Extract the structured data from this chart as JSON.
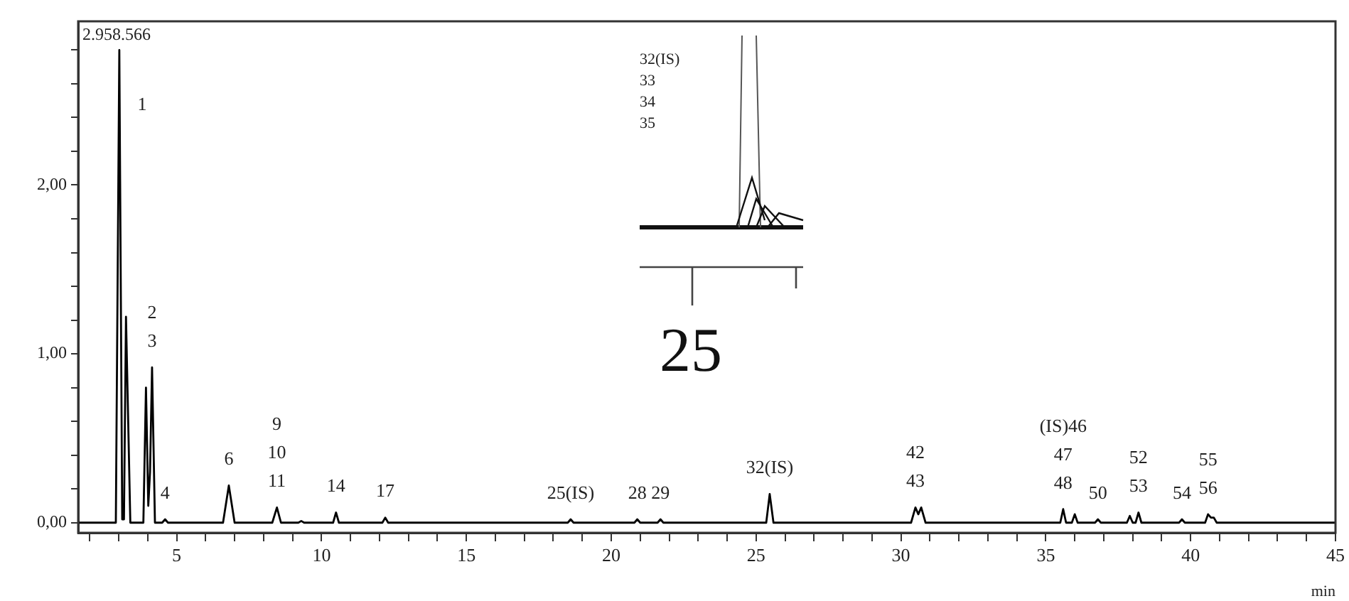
{
  "chart_data": {
    "type": "line",
    "xlabel": "min",
    "legend": false,
    "grid": false,
    "marker": "none",
    "xlim": [
      1.6,
      45
    ],
    "ylim": [
      -0.06,
      2.97
    ],
    "xticks": [
      {
        "value": 2,
        "label": null
      },
      {
        "value": 3,
        "label": null
      },
      {
        "value": 4,
        "label": null
      },
      5,
      {
        "value": 6,
        "label": null
      },
      {
        "value": 7,
        "label": null
      },
      {
        "value": 8,
        "label": null
      },
      {
        "value": 9,
        "label": null
      },
      10,
      {
        "value": 11,
        "label": null
      },
      {
        "value": 12,
        "label": null
      },
      {
        "value": 13,
        "label": null
      },
      {
        "value": 14,
        "label": null
      },
      15,
      {
        "value": 16,
        "label": null
      },
      {
        "value": 17,
        "label": null
      },
      {
        "value": 18,
        "label": null
      },
      {
        "value": 19,
        "label": null
      },
      20,
      {
        "value": 21,
        "label": null
      },
      {
        "value": 22,
        "label": null
      },
      {
        "value": 23,
        "label": null
      },
      {
        "value": 24,
        "label": null
      },
      25,
      {
        "value": 26,
        "label": null
      },
      {
        "value": 27,
        "label": null
      },
      {
        "value": 28,
        "label": null
      },
      {
        "value": 29,
        "label": null
      },
      30,
      {
        "value": 31,
        "label": null
      },
      {
        "value": 32,
        "label": null
      },
      {
        "value": 33,
        "label": null
      },
      {
        "value": 34,
        "label": null
      },
      35,
      {
        "value": 36,
        "label": null
      },
      {
        "value": 37,
        "label": null
      },
      {
        "value": 38,
        "label": null
      },
      {
        "value": 39,
        "label": null
      },
      40,
      {
        "value": 41,
        "label": null
      },
      {
        "value": 42,
        "label": null
      },
      {
        "value": 43,
        "label": null
      },
      {
        "value": 44,
        "label": null
      },
      45
    ],
    "yticks": [
      {
        "value": 0,
        "label": "0,00"
      },
      {
        "value": 0.2,
        "label": null
      },
      {
        "value": 0.4,
        "label": null
      },
      {
        "value": 0.6,
        "label": null
      },
      {
        "value": 0.8,
        "label": null
      },
      {
        "value": 1,
        "label": "1,00"
      },
      {
        "value": 1.2,
        "label": null
      },
      {
        "value": 1.4,
        "label": null
      },
      {
        "value": 1.6,
        "label": null
      },
      {
        "value": 1.8,
        "label": null
      },
      {
        "value": 2,
        "label": "2,00"
      },
      {
        "value": 2.2,
        "label": null
      },
      {
        "value": 2.4,
        "label": null
      },
      {
        "value": 2.6,
        "label": null
      },
      {
        "value": 2.8,
        "label": null
      }
    ],
    "series": [
      {
        "color": "#000000",
        "line_style": "solid",
        "x": [
          1.6,
          2.9,
          3.02,
          3.12,
          3.18,
          3.25,
          3.4,
          3.85,
          3.94,
          4.02,
          4.08,
          4.15,
          4.25,
          4.5,
          4.6,
          4.7,
          6.6,
          6.8,
          7.0,
          8.3,
          8.46,
          8.6,
          9.2,
          9.3,
          9.4,
          10.4,
          10.5,
          10.6,
          12.1,
          12.2,
          12.3,
          18.5,
          18.6,
          18.7,
          20.8,
          20.9,
          21.0,
          21.6,
          21.7,
          21.8,
          25.35,
          25.47,
          25.6,
          30.35,
          30.5,
          30.6,
          30.7,
          30.85,
          35.5,
          35.6,
          35.7,
          35.9,
          36.0,
          36.1,
          36.7,
          36.8,
          36.9,
          37.8,
          37.9,
          38.0,
          38.1,
          38.2,
          38.3,
          39.6,
          39.7,
          39.8,
          40.5,
          40.6,
          40.7,
          40.8,
          40.9,
          45
        ],
        "values": [
          0,
          0,
          2.8,
          0.02,
          0.02,
          1.22,
          0,
          0,
          0.8,
          0.1,
          0.3,
          0.92,
          0,
          0,
          0.02,
          0,
          0,
          0.22,
          0,
          0,
          0.09,
          0,
          0,
          0.01,
          0,
          0,
          0.06,
          0,
          0,
          0.03,
          0,
          0,
          0.02,
          0,
          0,
          0.02,
          0,
          0,
          0.02,
          0,
          0,
          0.17,
          0,
          0,
          0.09,
          0.05,
          0.09,
          0,
          0,
          0.08,
          0,
          0,
          0.05,
          0,
          0,
          0.02,
          0,
          0,
          0.04,
          0,
          0,
          0.06,
          0,
          0,
          0.02,
          0,
          0,
          0.05,
          0.03,
          0.03,
          0,
          0
        ]
      }
    ],
    "annotations": [
      "2.958.566",
      "32(IS)\n33\n34\n35",
      "25",
      {
        "text": "1",
        "x": 3.02,
        "y": 2.8
      },
      {
        "text": "2\n3",
        "x": 4.15,
        "y": 0.92
      },
      {
        "text": "4",
        "x": 4.6,
        "y": 0.02
      },
      {
        "text": "6",
        "x": 6.8,
        "y": 0.22
      },
      {
        "text": "9\n10\n11",
        "x": 8.46,
        "y": 0.09
      },
      {
        "text": "14",
        "x": 10.5,
        "y": 0.06
      },
      {
        "text": "17",
        "x": 12.2,
        "y": 0.03
      },
      {
        "text": "25(IS)",
        "x": 18.6,
        "y": 0.02
      },
      {
        "text": "28",
        "x": 20.9,
        "y": 0.02
      },
      {
        "text": "29",
        "x": 21.7,
        "y": 0.02
      },
      {
        "text": "32(IS)",
        "x": 25.47,
        "y": 0.17
      },
      {
        "text": "42\n43",
        "x": 30.5,
        "y": 0.09
      },
      {
        "text": "(IS)46\n47\n48",
        "x": 35.6,
        "y": 0.08
      },
      {
        "text": "50",
        "x": 36.8,
        "y": 0.02
      },
      {
        "text": "52\n53",
        "x": 38.2,
        "y": 0.06
      },
      {
        "text": "54",
        "x": 39.7,
        "y": 0.02
      },
      {
        "text": "55\n56",
        "x": 40.6,
        "y": 0.05
      }
    ]
  }
}
